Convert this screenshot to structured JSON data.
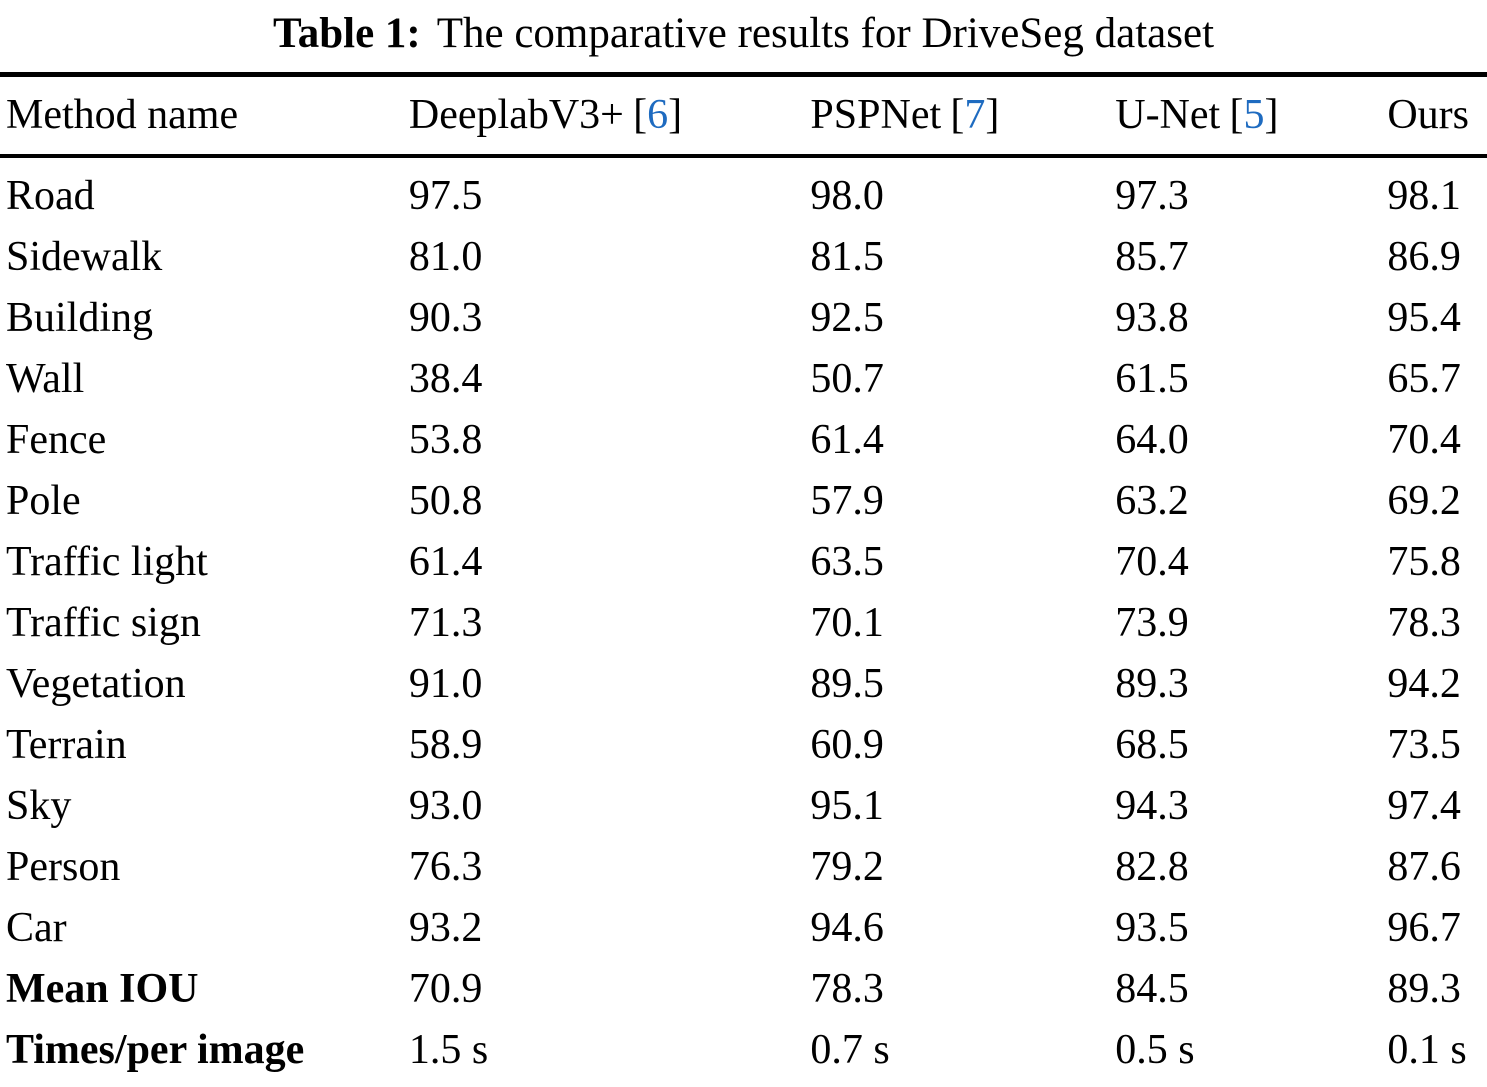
{
  "caption": {
    "label": "Table 1:",
    "text": "The comparative results for DriveSeg dataset"
  },
  "citation_color": "#1e6bc0",
  "citation_brackets": {
    "open": "[",
    "close": "]"
  },
  "table": {
    "columns": [
      {
        "name": "Method name",
        "cite": null
      },
      {
        "name": "DeeplabV3+",
        "cite": "6"
      },
      {
        "name": "PSPNet",
        "cite": "7"
      },
      {
        "name": "U-Net",
        "cite": "5"
      },
      {
        "name": "Ours",
        "cite": null
      }
    ],
    "rows": [
      {
        "label": "Road",
        "bold": false,
        "values": [
          "97.5",
          "98.0",
          "97.3",
          "98.1"
        ]
      },
      {
        "label": "Sidewalk",
        "bold": false,
        "values": [
          "81.0",
          "81.5",
          "85.7",
          "86.9"
        ]
      },
      {
        "label": "Building",
        "bold": false,
        "values": [
          "90.3",
          "92.5",
          "93.8",
          "95.4"
        ]
      },
      {
        "label": "Wall",
        "bold": false,
        "values": [
          "38.4",
          "50.7",
          "61.5",
          "65.7"
        ]
      },
      {
        "label": "Fence",
        "bold": false,
        "values": [
          "53.8",
          "61.4",
          "64.0",
          "70.4"
        ]
      },
      {
        "label": "Pole",
        "bold": false,
        "values": [
          "50.8",
          "57.9",
          "63.2",
          "69.2"
        ]
      },
      {
        "label": "Traffic light",
        "bold": false,
        "values": [
          "61.4",
          "63.5",
          "70.4",
          "75.8"
        ]
      },
      {
        "label": "Traffic sign",
        "bold": false,
        "values": [
          "71.3",
          "70.1",
          "73.9",
          "78.3"
        ]
      },
      {
        "label": "Vegetation",
        "bold": false,
        "values": [
          "91.0",
          "89.5",
          "89.3",
          "94.2"
        ]
      },
      {
        "label": "Terrain",
        "bold": false,
        "values": [
          "58.9",
          "60.9",
          "68.5",
          "73.5"
        ]
      },
      {
        "label": "Sky",
        "bold": false,
        "values": [
          "93.0",
          "95.1",
          "94.3",
          "97.4"
        ]
      },
      {
        "label": "Person",
        "bold": false,
        "values": [
          "76.3",
          "79.2",
          "82.8",
          "87.6"
        ]
      },
      {
        "label": "Car",
        "bold": false,
        "values": [
          "93.2",
          "94.6",
          "93.5",
          "96.7"
        ]
      },
      {
        "label": "Mean IOU",
        "bold": true,
        "values": [
          "70.9",
          "78.3",
          "84.5",
          "89.3"
        ]
      },
      {
        "label": "Times/per image",
        "bold": true,
        "values": [
          "1.5 s",
          "0.7 s",
          "0.5 s",
          "0.1 s"
        ]
      }
    ]
  },
  "chart_data": {
    "type": "table",
    "title": "Table 1: The comparative results for DriveSeg dataset",
    "columns": [
      "Method name",
      "DeeplabV3+ [6]",
      "PSPNet [7]",
      "U-Net [5]",
      "Ours"
    ],
    "rows": [
      [
        "Road",
        97.5,
        98.0,
        97.3,
        98.1
      ],
      [
        "Sidewalk",
        81.0,
        81.5,
        85.7,
        86.9
      ],
      [
        "Building",
        90.3,
        92.5,
        93.8,
        95.4
      ],
      [
        "Wall",
        38.4,
        50.7,
        61.5,
        65.7
      ],
      [
        "Fence",
        53.8,
        61.4,
        64.0,
        70.4
      ],
      [
        "Pole",
        50.8,
        57.9,
        63.2,
        69.2
      ],
      [
        "Traffic light",
        61.4,
        63.5,
        70.4,
        75.8
      ],
      [
        "Traffic sign",
        71.3,
        70.1,
        73.9,
        78.3
      ],
      [
        "Vegetation",
        91.0,
        89.5,
        89.3,
        94.2
      ],
      [
        "Terrain",
        58.9,
        60.9,
        68.5,
        73.5
      ],
      [
        "Sky",
        93.0,
        95.1,
        94.3,
        97.4
      ],
      [
        "Person",
        76.3,
        79.2,
        82.8,
        87.6
      ],
      [
        "Car",
        93.2,
        94.6,
        93.5,
        96.7
      ],
      [
        "Mean IOU",
        70.9,
        78.3,
        84.5,
        89.3
      ],
      [
        "Times/per image",
        "1.5 s",
        "0.7 s",
        "0.5 s",
        "0.1 s"
      ]
    ]
  }
}
